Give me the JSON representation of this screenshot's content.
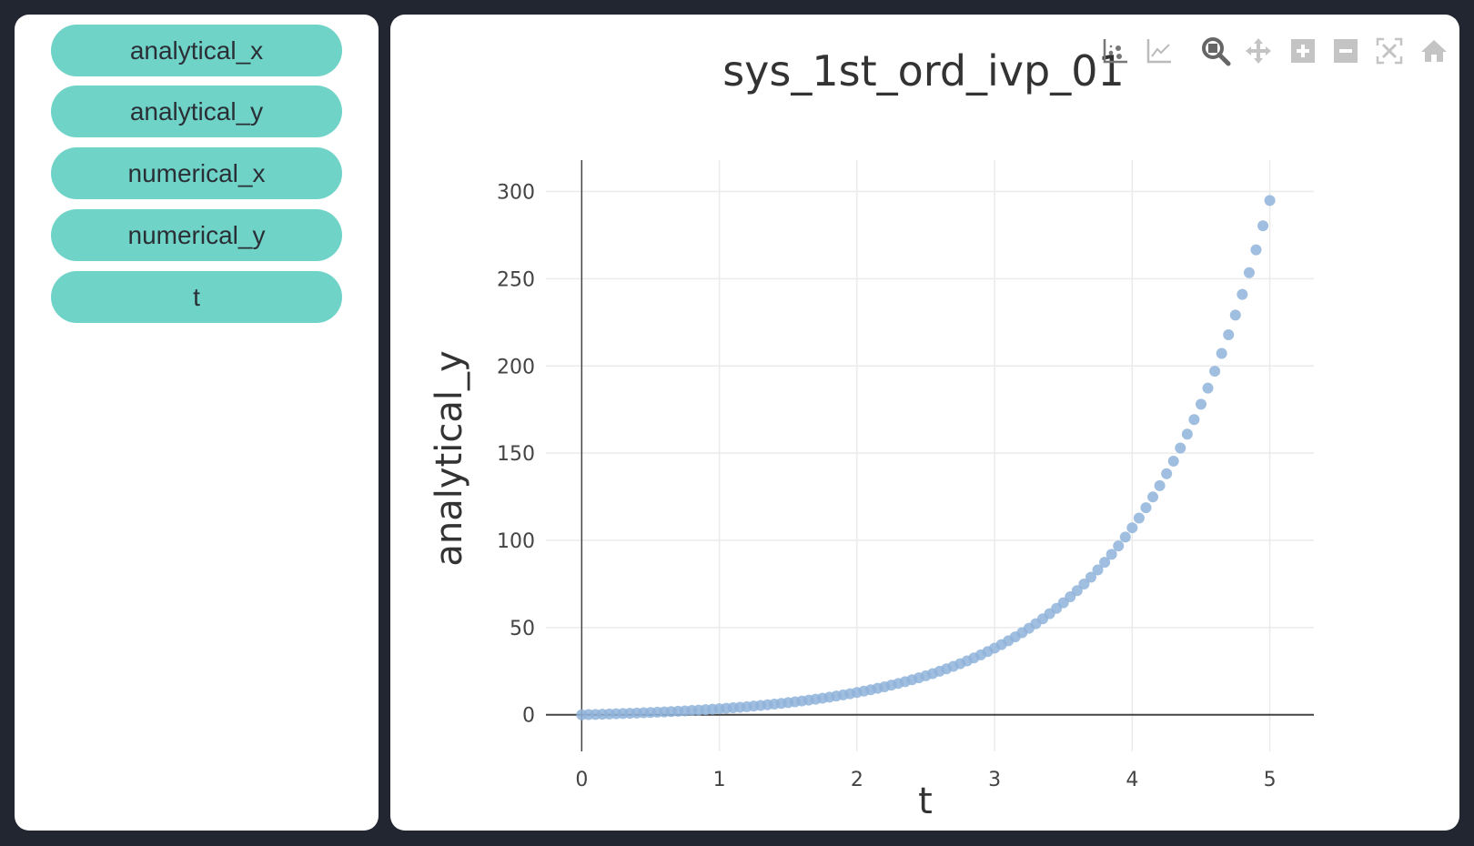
{
  "sidebar": {
    "buttons": [
      {
        "label": "analytical_x"
      },
      {
        "label": "analytical_y"
      },
      {
        "label": "numerical_x"
      },
      {
        "label": "numerical_y"
      },
      {
        "label": "t"
      }
    ],
    "button_color": "#6fd3c7"
  },
  "toolbar": {
    "icons": [
      "scatter-plot-icon",
      "line-chart-icon",
      "zoom-icon",
      "pan-icon",
      "zoom-in-icon",
      "zoom-out-icon",
      "autoscale-icon",
      "home-icon"
    ],
    "active": "zoom-icon"
  },
  "chart_data": {
    "type": "scatter",
    "title": "sys_1st_ord_ivp_01",
    "xlabel": "t",
    "ylabel": "analytical_y",
    "xlim": [
      -0.26,
      5.32
    ],
    "ylim": [
      -21,
      318
    ],
    "xticks": [
      "0",
      "1",
      "2",
      "3",
      "4",
      "5"
    ],
    "yticks": [
      "0",
      "50",
      "100",
      "150",
      "200",
      "250",
      "300"
    ],
    "grid": true,
    "marker_color": "#8fb3d9",
    "x": [
      0,
      0.05,
      0.1,
      0.15,
      0.2,
      0.25,
      0.3,
      0.35,
      0.4,
      0.45,
      0.5,
      0.55,
      0.6,
      0.65,
      0.7,
      0.75,
      0.8,
      0.85,
      0.9,
      0.95,
      1,
      1.05,
      1.1,
      1.15,
      1.2,
      1.25,
      1.3,
      1.35,
      1.4,
      1.45,
      1.5,
      1.55,
      1.6,
      1.65,
      1.7,
      1.75,
      1.8,
      1.85,
      1.9,
      1.95,
      2,
      2.05,
      2.1,
      2.15,
      2.2,
      2.25,
      2.3,
      2.35,
      2.4,
      2.45,
      2.5,
      2.55,
      2.6,
      2.65,
      2.7,
      2.75,
      2.8,
      2.85,
      2.9,
      2.95,
      3,
      3.05,
      3.1,
      3.15,
      3.2,
      3.25,
      3.3,
      3.35,
      3.4,
      3.45,
      3.5,
      3.55,
      3.6,
      3.65,
      3.7,
      3.75,
      3.8,
      3.85,
      3.9,
      3.95,
      4,
      4.05,
      4.1,
      4.15,
      4.2,
      4.25,
      4.3,
      4.35,
      4.4,
      4.45,
      4.5,
      4.55,
      4.6,
      4.65,
      4.7,
      4.75,
      4.8,
      4.85,
      4.9,
      4.95,
      5
    ],
    "y": [
      0,
      0.1,
      0.21,
      0.32,
      0.44,
      0.57,
      0.7,
      0.84,
      0.98,
      1.14,
      1.3,
      1.47,
      1.64,
      1.83,
      2.03,
      2.23,
      2.45,
      2.68,
      2.92,
      3.17,
      3.44,
      3.72,
      4.01,
      4.32,
      4.64,
      4.98,
      5.34,
      5.71,
      6.11,
      6.53,
      6.96,
      7.42,
      7.91,
      8.41,
      8.95,
      9.51,
      10.1,
      10.72,
      11.37,
      12.06,
      12.78,
      13.54,
      14.33,
      15.17,
      16.05,
      16.98,
      17.95,
      18.97,
      20.05,
      21.18,
      22.37,
      23.61,
      24.93,
      26.31,
      27.76,
      29.29,
      30.89,
      32.58,
      34.35,
      36.21,
      38.17,
      40.23,
      42.4,
      44.67,
      47.07,
      49.58,
      52.23,
      55.01,
      57.93,
      61.0,
      64.23,
      67.63,
      71.2,
      74.95,
      78.89,
      83.04,
      87.4,
      91.99,
      96.8,
      101.87,
      107.2,
      112.8,
      118.68,
      124.87,
      131.37,
      138.21,
      145.4,
      152.96,
      160.9,
      169.25,
      178.03,
      187.26,
      196.97,
      207.17,
      217.89,
      229.17,
      241.02,
      253.48,
      266.58,
      280.35,
      294.83
    ]
  }
}
